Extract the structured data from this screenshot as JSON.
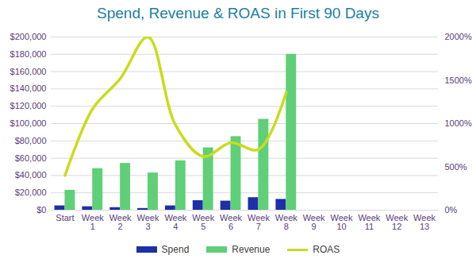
{
  "chart_data": {
    "type": "bar",
    "title": "Spend, Revenue & ROAS in First 90 Days",
    "categories": [
      "Start",
      "Week 1",
      "Week 2",
      "Week 3",
      "Week 4",
      "Week 5",
      "Week 6",
      "Week 7",
      "Week 8",
      "Week 9",
      "Week 10",
      "Week 11",
      "Week 12",
      "Week 13"
    ],
    "series": [
      {
        "name": "Spend",
        "type": "bar",
        "color": "#1f2fa8",
        "values": [
          5000,
          4000,
          3000,
          2000,
          5000,
          11000,
          10500,
          14500,
          12500,
          null,
          null,
          null,
          null,
          null
        ]
      },
      {
        "name": "Revenue",
        "type": "bar",
        "color": "#5fcf78",
        "values": [
          23000,
          48000,
          54000,
          43000,
          57000,
          72000,
          85000,
          105000,
          180000,
          null,
          null,
          null,
          null,
          null
        ]
      },
      {
        "name": "ROAS",
        "type": "line",
        "color": "#c9dc1f",
        "axis": "y2",
        "line_style": "solid",
        "values": [
          400,
          1170,
          1520,
          2000,
          980,
          620,
          780,
          700,
          1360,
          null,
          null,
          null,
          null,
          null
        ]
      }
    ],
    "ylim": [
      0,
      200000
    ],
    "yticks": [
      {
        "value": 0,
        "label": "$0"
      },
      {
        "value": 20000,
        "label": "$20,000"
      },
      {
        "value": 40000,
        "label": "$40,000"
      },
      {
        "value": 60000,
        "label": "$60,000"
      },
      {
        "value": 80000,
        "label": "$80,000"
      },
      {
        "value": 100000,
        "label": "$100,000"
      },
      {
        "value": 120000,
        "label": "$120,000"
      },
      {
        "value": 140000,
        "label": "$140,000"
      },
      {
        "value": 160000,
        "label": "$160,000"
      },
      {
        "value": 180000,
        "label": "$180,000"
      },
      {
        "value": 200000,
        "label": "$200,000"
      }
    ],
    "y2lim": [
      0,
      2000
    ],
    "y2ticks": [
      {
        "value": 0,
        "label": "0%"
      },
      {
        "value": 500,
        "label": "500%"
      },
      {
        "value": 1000,
        "label": "1000%"
      },
      {
        "value": 1500,
        "label": "1500%"
      },
      {
        "value": 2000,
        "label": "2000%"
      }
    ],
    "grid": true,
    "legend": "bottom"
  }
}
